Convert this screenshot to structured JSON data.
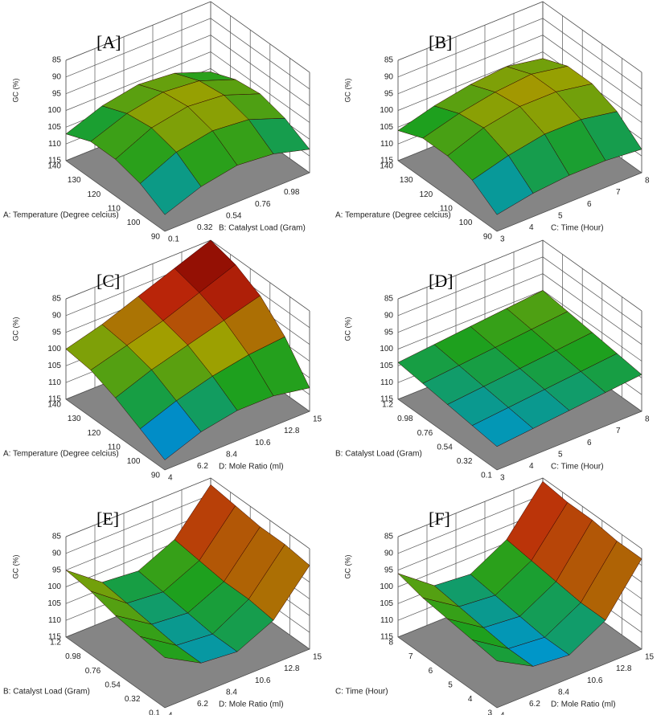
{
  "chart_data": [
    {
      "type": "surface3d",
      "label": "[A]",
      "zlabel": "GC (%)",
      "xlabel": "A: Temperature (Degree celcius)",
      "ylabel": "B: Catalyst Load (Gram)",
      "xlim": [
        90,
        140
      ],
      "xticks": [
        90,
        100,
        110,
        120,
        130,
        140
      ],
      "ylim": [
        0.1,
        1.2
      ],
      "yticks": [
        0.1,
        0.32,
        0.54,
        0.76,
        0.98
      ],
      "zlim": [
        115,
        85
      ],
      "zticks": [
        85,
        90,
        95,
        100,
        105,
        110,
        115
      ],
      "x": [
        90,
        102.5,
        115,
        127.5,
        140
      ],
      "y": [
        0.1,
        0.375,
        0.65,
        0.925,
        1.2
      ],
      "z": [
        [
          110,
          106,
          104,
          105,
          108
        ],
        [
          106,
          101,
          99,
          100,
          104
        ],
        [
          104,
          99,
          97,
          98,
          102
        ],
        [
          104,
          100,
          98,
          99,
          103
        ],
        [
          107,
          103,
          101,
          102,
          106
        ]
      ]
    },
    {
      "type": "surface3d",
      "label": "[B]",
      "zlabel": "GC (%)",
      "xlabel": "A: Temperature (Degree celcius)",
      "ylabel": "C: Time (Hour)",
      "xlim": [
        90,
        140
      ],
      "xticks": [
        90,
        100,
        110,
        120,
        130,
        140
      ],
      "ylim": [
        3,
        8
      ],
      "yticks": [
        3,
        4,
        5,
        6,
        7,
        8
      ],
      "zlim": [
        115,
        85
      ],
      "zticks": [
        85,
        90,
        95,
        100,
        105,
        110,
        115
      ],
      "x": [
        90,
        102.5,
        115,
        127.5,
        140
      ],
      "y": [
        3,
        4.25,
        5.5,
        6.75,
        8
      ],
      "z": [
        [
          110,
          108,
          107,
          107,
          108
        ],
        [
          105,
          102,
          100,
          100,
          102
        ],
        [
          103,
          99,
          97,
          97,
          99
        ],
        [
          103,
          100,
          98,
          97,
          99
        ],
        [
          106,
          103,
          101,
          100,
          102
        ]
      ]
    },
    {
      "type": "surface3d",
      "label": "[C]",
      "zlabel": "GC (%)",
      "xlabel": "A: Temperature (Degree celcius)",
      "ylabel": "D: Mole Ratio (ml)",
      "xlim": [
        90,
        140
      ],
      "xticks": [
        90,
        100,
        110,
        120,
        130,
        140
      ],
      "ylim": [
        4,
        15
      ],
      "yticks": [
        4,
        6.2,
        8.4,
        10.6,
        12.8,
        15
      ],
      "zlim": [
        115,
        85
      ],
      "zticks": [
        85,
        90,
        95,
        100,
        105,
        110,
        115
      ],
      "x": [
        90,
        102.5,
        115,
        127.5,
        140
      ],
      "y": [
        4,
        6.75,
        9.5,
        12.25,
        15
      ],
      "z": [
        [
          112,
          108,
          106,
          106,
          108
        ],
        [
          108,
          104,
          101,
          99,
          98
        ],
        [
          104,
          100,
          97,
          94,
          91
        ],
        [
          101,
          98,
          95,
          91,
          87
        ],
        [
          100,
          97,
          93,
          89,
          85
        ]
      ]
    },
    {
      "type": "surface3d",
      "label": "[D]",
      "zlabel": "GC (%)",
      "xlabel": "B: Catalyst Load (Gram)",
      "ylabel": "C: Time (Hour)",
      "xlim": [
        0.1,
        1.2
      ],
      "xticks": [
        0.1,
        0.32,
        0.54,
        0.76,
        0.98,
        1.2
      ],
      "ylim": [
        3,
        8
      ],
      "yticks": [
        3,
        4,
        5,
        6,
        7,
        8
      ],
      "zlim": [
        115,
        85
      ],
      "zticks": [
        85,
        90,
        95,
        100,
        105,
        110,
        115
      ],
      "x": [
        0.1,
        0.375,
        0.65,
        0.925,
        1.2
      ],
      "y": [
        3,
        4.25,
        5.5,
        6.75,
        8
      ],
      "z": [
        [
          108,
          107,
          106,
          105,
          104
        ],
        [
          107,
          106,
          105,
          104,
          103
        ],
        [
          106,
          105,
          104,
          103,
          102
        ],
        [
          105,
          104,
          103,
          102,
          101
        ],
        [
          104,
          103,
          102,
          101,
          100
        ]
      ]
    },
    {
      "type": "surface3d",
      "label": "[E]",
      "zlabel": "GC (%)",
      "xlabel": "B: Catalyst Load (Gram)",
      "ylabel": "D: Mole Ratio (ml)",
      "xlim": [
        0.1,
        1.2
      ],
      "xticks": [
        0.1,
        0.32,
        0.54,
        0.76,
        0.98,
        1.2
      ],
      "ylim": [
        4,
        15
      ],
      "yticks": [
        4,
        6.2,
        8.4,
        10.6,
        12.8,
        15
      ],
      "zlim": [
        115,
        85
      ],
      "zticks": [
        85,
        90,
        95,
        100,
        105,
        110,
        115
      ],
      "x": [
        0.1,
        0.375,
        0.65,
        0.925,
        1.2
      ],
      "y": [
        4,
        6.75,
        9.5,
        12.25,
        15
      ],
      "z": [
        [
          100,
          106,
          107,
          102,
          90
        ],
        [
          99,
          106,
          107,
          101,
          89
        ],
        [
          98,
          105,
          106,
          101,
          89
        ],
        [
          96,
          104,
          105,
          100,
          88
        ],
        [
          95,
          103,
          104,
          99,
          87
        ]
      ]
    },
    {
      "type": "surface3d",
      "label": "[F]",
      "zlabel": "GC (%)",
      "xlabel": "C: Time (Hour)",
      "ylabel": "D: Mole Ratio (ml)",
      "xlim": [
        3,
        8
      ],
      "xticks": [
        3,
        4,
        5,
        6,
        7,
        8
      ],
      "ylim": [
        4,
        15
      ],
      "yticks": [
        4,
        6.2,
        8.4,
        10.6,
        12.8,
        15
      ],
      "zlim": [
        115,
        85
      ],
      "zticks": [
        85,
        90,
        95,
        100,
        105,
        110,
        115
      ],
      "x": [
        3,
        4.25,
        5.5,
        6.75,
        8
      ],
      "y": [
        4,
        6.75,
        9.5,
        12.25,
        15
      ],
      "z": [
        [
          101,
          107,
          108,
          102,
          88
        ],
        [
          100,
          107,
          108,
          102,
          88
        ],
        [
          99,
          106,
          107,
          101,
          87
        ],
        [
          98,
          105,
          106,
          100,
          87
        ],
        [
          96,
          104,
          105,
          99,
          86
        ]
      ]
    }
  ]
}
